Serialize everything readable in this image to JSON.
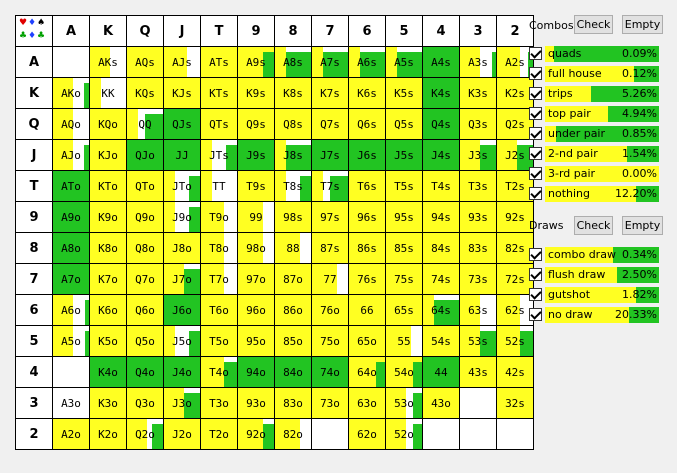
{
  "matrix": {
    "headers": [
      "A",
      "K",
      "Q",
      "J",
      "T",
      "9",
      "8",
      "7",
      "6",
      "5",
      "4",
      "3",
      "2"
    ],
    "rows": [
      [
        "",
        "AKs",
        "AQs",
        "AJs",
        "ATs",
        "A9s",
        "A8s",
        "A7s",
        "A6s",
        "A5s",
        "A4s",
        "A3s",
        "A2s"
      ],
      [
        "AKo",
        "KK",
        "KQs",
        "KJs",
        "KTs",
        "K9s",
        "K8s",
        "K7s",
        "K6s",
        "K5s",
        "K4s",
        "K3s",
        "K2s"
      ],
      [
        "AQo",
        "KQo",
        "QQ",
        "QJs",
        "QTs",
        "Q9s",
        "Q8s",
        "Q7s",
        "Q6s",
        "Q5s",
        "Q4s",
        "Q3s",
        "Q2s"
      ],
      [
        "AJo",
        "KJo",
        "QJo",
        "JJ",
        "JTs",
        "J9s",
        "J8s",
        "J7s",
        "J6s",
        "J5s",
        "J4s",
        "J3s",
        "J2s"
      ],
      [
        "ATo",
        "KTo",
        "QTo",
        "JTo",
        "TT",
        "T9s",
        "T8s",
        "T7s",
        "T6s",
        "T5s",
        "T4s",
        "T3s",
        "T2s"
      ],
      [
        "A9o",
        "K9o",
        "Q9o",
        "J9o",
        "T9o",
        "99",
        "98s",
        "97s",
        "96s",
        "95s",
        "94s",
        "93s",
        "92s"
      ],
      [
        "A8o",
        "K8o",
        "Q8o",
        "J8o",
        "T8o",
        "98o",
        "88",
        "87s",
        "86s",
        "85s",
        "84s",
        "83s",
        "82s"
      ],
      [
        "A7o",
        "K7o",
        "Q7o",
        "J7o",
        "T7o",
        "97o",
        "87o",
        "77",
        "76s",
        "75s",
        "74s",
        "73s",
        "72s"
      ],
      [
        "A6o",
        "K6o",
        "Q6o",
        "J6o",
        "T6o",
        "96o",
        "86o",
        "76o",
        "66",
        "65s",
        "64s",
        "63s",
        "62s"
      ],
      [
        "A5o",
        "K5o",
        "Q5o",
        "J5o",
        "T5o",
        "95o",
        "85o",
        "75o",
        "65o",
        "55",
        "54s",
        "53s",
        "52s"
      ],
      [
        "",
        "K4o",
        "Q4o",
        "J4o",
        "T4o",
        "94o",
        "84o",
        "74o",
        "64o",
        "54o",
        "44",
        "43s",
        "42s"
      ],
      [
        "A3o",
        "K3o",
        "Q3o",
        "J3o",
        "T3o",
        "93o",
        "83o",
        "73o",
        "63o",
        "53o",
        "43o",
        "",
        "32s"
      ],
      [
        "A2o",
        "K2o",
        "Q2o",
        "J2o",
        "T2o",
        "92o",
        "82o",
        "",
        "62o",
        "52o",
        "",
        "",
        ""
      ]
    ],
    "yellow": [
      [
        0,
        0.55,
        1,
        0.65,
        1,
        1,
        0.3,
        0.3,
        0.3,
        0.3,
        0,
        0.55,
        0.65
      ],
      [
        0.55,
        0.3,
        1,
        1,
        1,
        1,
        1,
        1,
        1,
        1,
        0,
        1,
        1
      ],
      [
        0.55,
        1,
        0.3,
        0,
        1,
        1,
        1,
        1,
        1,
        1,
        0,
        1,
        1
      ],
      [
        0.55,
        1,
        0,
        0,
        0.3,
        0,
        0.3,
        0,
        0,
        0,
        0,
        0.55,
        0.55
      ],
      [
        0,
        1,
        1,
        0.3,
        0.3,
        1,
        0.3,
        0.3,
        1,
        1,
        1,
        1,
        1
      ],
      [
        0,
        1,
        1,
        0.3,
        0.65,
        0.7,
        1,
        1,
        1,
        1,
        1,
        1,
        1
      ],
      [
        0,
        1,
        1,
        1,
        0.65,
        0.7,
        0.7,
        1,
        1,
        1,
        1,
        1,
        1
      ],
      [
        0,
        1,
        1,
        0.55,
        0.65,
        1,
        1,
        0.7,
        1,
        1,
        1,
        1,
        1
      ],
      [
        0.55,
        1,
        1,
        0,
        1,
        1,
        1,
        1,
        1,
        1,
        0.3,
        0.55,
        0.65
      ],
      [
        0.55,
        1,
        1,
        0.3,
        1,
        1,
        1,
        1,
        1,
        0.7,
        1,
        0.55,
        0.65
      ],
      [
        0,
        0,
        0,
        0,
        0.65,
        0,
        0,
        0,
        1,
        1,
        0,
        1,
        1
      ],
      [
        0,
        1,
        1,
        0.55,
        1,
        1,
        1,
        1,
        1,
        0.55,
        1,
        0,
        1
      ],
      [
        1,
        1,
        0.55,
        1,
        1,
        0.7,
        0.7,
        0,
        1,
        0.55,
        0,
        0,
        0
      ]
    ],
    "green": [
      [
        0,
        0,
        0,
        0,
        0,
        0.3,
        0.7,
        0.7,
        0.7,
        0.7,
        1,
        0.1,
        0.15
      ],
      [
        0.15,
        0,
        0,
        0,
        0,
        0,
        0,
        0,
        0,
        0,
        1,
        0,
        0
      ],
      [
        0,
        0,
        0.5,
        1,
        0,
        0,
        0,
        0,
        0,
        0,
        1,
        0,
        0
      ],
      [
        0.15,
        0,
        1,
        1,
        0.3,
        1,
        0.7,
        1,
        1,
        1,
        1,
        0.45,
        0.45
      ],
      [
        1,
        0,
        0,
        0.3,
        0,
        0,
        0.3,
        0.5,
        0,
        0,
        0,
        0,
        0
      ],
      [
        1,
        0,
        0,
        0.3,
        0,
        0,
        0,
        0,
        0,
        0,
        0,
        0,
        0
      ],
      [
        1,
        0,
        0,
        0,
        0,
        0,
        0,
        0,
        0,
        0,
        0,
        0,
        0
      ],
      [
        1,
        0,
        0,
        0.45,
        0,
        0,
        0,
        0,
        0,
        0,
        0,
        0,
        0
      ],
      [
        0.1,
        0,
        0,
        1,
        0,
        0,
        0,
        0,
        0,
        0,
        0.7,
        0,
        0
      ],
      [
        0.1,
        0,
        0,
        0.3,
        0,
        0,
        0,
        0,
        0,
        0,
        0,
        0.45,
        0.35
      ],
      [
        0,
        1,
        1,
        1,
        0.35,
        1,
        1,
        1,
        0.25,
        0.25,
        1,
        0,
        0
      ],
      [
        0,
        0,
        0,
        0.45,
        0,
        0,
        0,
        0,
        0,
        0.25,
        0,
        0,
        0
      ],
      [
        0,
        0,
        0.3,
        0,
        0,
        0.3,
        0,
        0,
        0,
        0.25,
        0,
        0,
        0
      ]
    ]
  },
  "combos": {
    "title": "Combos",
    "check_label": "Check",
    "empty_label": "Empty",
    "items": [
      {
        "name": "quads",
        "pct": "0.09%",
        "yellow": 0.08,
        "green": 0.92
      },
      {
        "name": "full house",
        "pct": "0.12%",
        "yellow": 0.78,
        "green": 0.22
      },
      {
        "name": "trips",
        "pct": "5.26%",
        "yellow": 0.4,
        "green": 0.6
      },
      {
        "name": "top pair",
        "pct": "4.94%",
        "yellow": 0.55,
        "green": 0.45
      },
      {
        "name": "under pair",
        "pct": "0.85%",
        "yellow": 0.1,
        "green": 0.9
      },
      {
        "name": "2-nd pair",
        "pct": "1.54%",
        "yellow": 0.72,
        "green": 0.28
      },
      {
        "name": "3-rd pair",
        "pct": "0.00%",
        "yellow": 1,
        "green": 0
      },
      {
        "name": "nothing",
        "pct": "12.20%",
        "yellow": 0.8,
        "green": 0.2
      }
    ]
  },
  "draws": {
    "title": "Draws",
    "check_label": "Check",
    "empty_label": "Empty",
    "items": [
      {
        "name": "combo draw",
        "pct": "0.34%",
        "yellow": 0.6,
        "green": 0.4
      },
      {
        "name": "flush draw",
        "pct": "2.50%",
        "yellow": 0.63,
        "green": 0.37
      },
      {
        "name": "gutshot",
        "pct": "1.82%",
        "yellow": 0.8,
        "green": 0.2
      },
      {
        "name": "no draw",
        "pct": "20.33%",
        "yellow": 0.74,
        "green": 0.26
      }
    ]
  }
}
